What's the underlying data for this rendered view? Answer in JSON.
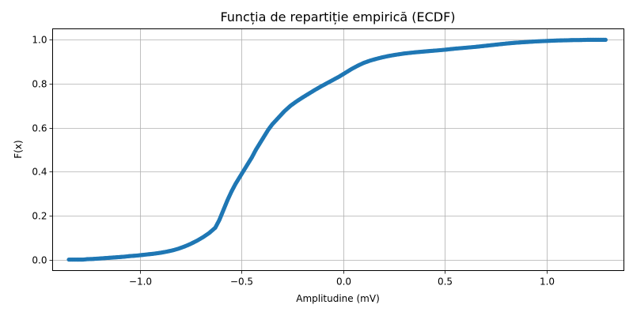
{
  "chart_data": {
    "type": "scatter",
    "title": "Funcția de repartiție empirică (ECDF)",
    "xlabel": "Amplitudine (mV)",
    "ylabel": "F(x)",
    "xlim": [
      -1.43,
      1.38
    ],
    "ylim": [
      -0.05,
      1.05
    ],
    "grid": true,
    "marker_color": "#1f77b4",
    "xticks": [
      -1.0,
      -0.5,
      0.0,
      0.5,
      1.0
    ],
    "xtick_labels": [
      "−1.0",
      "−0.5",
      "0.0",
      "0.5",
      "1.0"
    ],
    "yticks": [
      0.0,
      0.2,
      0.4,
      0.6,
      0.8,
      1.0
    ],
    "ytick_labels": [
      "0.0",
      "0.2",
      "0.4",
      "0.6",
      "0.8",
      "1.0"
    ],
    "points": [
      [
        -1.35,
        0.0
      ],
      [
        -1.31,
        0.0
      ],
      [
        -1.28,
        0.0
      ],
      [
        -1.26,
        0.002
      ],
      [
        -1.23,
        0.003
      ],
      [
        -1.2,
        0.005
      ],
      [
        -1.17,
        0.007
      ],
      [
        -1.14,
        0.009
      ],
      [
        -1.11,
        0.011
      ],
      [
        -1.08,
        0.013
      ],
      [
        -1.05,
        0.016
      ],
      [
        -1.02,
        0.018
      ],
      [
        -0.99,
        0.021
      ],
      [
        -0.96,
        0.024
      ],
      [
        -0.93,
        0.027
      ],
      [
        -0.9,
        0.031
      ],
      [
        -0.87,
        0.036
      ],
      [
        -0.84,
        0.042
      ],
      [
        -0.81,
        0.05
      ],
      [
        -0.78,
        0.06
      ],
      [
        -0.75,
        0.072
      ],
      [
        -0.72,
        0.086
      ],
      [
        -0.69,
        0.102
      ],
      [
        -0.66,
        0.121
      ],
      [
        -0.63,
        0.145
      ],
      [
        -0.61,
        0.18
      ],
      [
        -0.59,
        0.225
      ],
      [
        -0.57,
        0.27
      ],
      [
        -0.55,
        0.31
      ],
      [
        -0.53,
        0.345
      ],
      [
        -0.51,
        0.375
      ],
      [
        -0.49,
        0.405
      ],
      [
        -0.47,
        0.435
      ],
      [
        -0.45,
        0.465
      ],
      [
        -0.43,
        0.5
      ],
      [
        -0.41,
        0.53
      ],
      [
        -0.39,
        0.56
      ],
      [
        -0.37,
        0.59
      ],
      [
        -0.35,
        0.615
      ],
      [
        -0.32,
        0.645
      ],
      [
        -0.29,
        0.675
      ],
      [
        -0.26,
        0.7
      ],
      [
        -0.23,
        0.72
      ],
      [
        -0.2,
        0.738
      ],
      [
        -0.17,
        0.755
      ],
      [
        -0.14,
        0.772
      ],
      [
        -0.11,
        0.788
      ],
      [
        -0.08,
        0.803
      ],
      [
        -0.05,
        0.818
      ],
      [
        -0.02,
        0.833
      ],
      [
        0.01,
        0.85
      ],
      [
        0.04,
        0.867
      ],
      [
        0.07,
        0.882
      ],
      [
        0.1,
        0.895
      ],
      [
        0.13,
        0.905
      ],
      [
        0.16,
        0.913
      ],
      [
        0.19,
        0.92
      ],
      [
        0.22,
        0.926
      ],
      [
        0.25,
        0.931
      ],
      [
        0.3,
        0.938
      ],
      [
        0.35,
        0.943
      ],
      [
        0.4,
        0.947
      ],
      [
        0.45,
        0.951
      ],
      [
        0.5,
        0.955
      ],
      [
        0.55,
        0.96
      ],
      [
        0.6,
        0.964
      ],
      [
        0.65,
        0.968
      ],
      [
        0.7,
        0.973
      ],
      [
        0.75,
        0.978
      ],
      [
        0.8,
        0.983
      ],
      [
        0.85,
        0.987
      ],
      [
        0.9,
        0.99
      ],
      [
        0.95,
        0.993
      ],
      [
        1.0,
        0.995
      ],
      [
        1.05,
        0.997
      ],
      [
        1.1,
        0.998
      ],
      [
        1.13,
        0.999
      ],
      [
        1.16,
        0.999
      ],
      [
        1.2,
        1.0
      ],
      [
        1.25,
        1.0
      ],
      [
        1.29,
        1.0
      ]
    ]
  }
}
